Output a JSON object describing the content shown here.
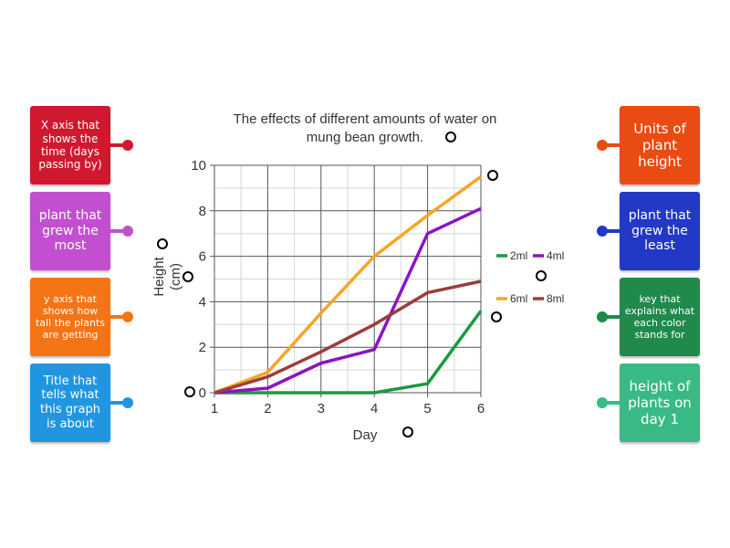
{
  "left_cards": [
    {
      "label": "X axis that shows the time (days passing by)",
      "color": "#d0192e"
    },
    {
      "label": "plant that grew the most",
      "color": "#c24fd0"
    },
    {
      "label": "y axis that shows how tall the plants are getting",
      "color": "#f47516"
    },
    {
      "label": "Title that tells what this graph is about",
      "color": "#2196e0"
    }
  ],
  "right_cards": [
    {
      "label": "Units of plant height",
      "color": "#ea4b12"
    },
    {
      "label": "plant that grew the least",
      "color": "#2238c6"
    },
    {
      "label": "key that explains what each color stands for",
      "color": "#1f8a4c"
    },
    {
      "label": "height of plants on day 1",
      "color": "#39ba85"
    }
  ],
  "chart_data": {
    "type": "line",
    "title": "The effects of different amounts of water on mung bean growth.",
    "title_line1": "The effects of different amounts of water on",
    "title_line2": "mung bean growth.",
    "xlabel": "Day",
    "ylabel": "Height",
    "ylabel_units": "(cm)",
    "x": [
      1,
      2,
      3,
      4,
      5,
      6
    ],
    "xlim": [
      1,
      6
    ],
    "ylim": [
      0,
      10
    ],
    "x_ticks": [
      "1",
      "2",
      "3",
      "4",
      "5",
      "6"
    ],
    "y_ticks": [
      "0",
      "2",
      "4",
      "6",
      "8",
      "10"
    ],
    "grid": true,
    "legend_position": "right",
    "series": [
      {
        "name": "2ml",
        "color": "#1a9a3e",
        "values": [
          0,
          0,
          0,
          0,
          0.4,
          3.6
        ]
      },
      {
        "name": "4ml",
        "color": "#8b13c4",
        "values": [
          0,
          0.2,
          1.3,
          1.9,
          7.0,
          8.1
        ]
      },
      {
        "name": "6ml",
        "color": "#f5a623",
        "values": [
          0,
          0.9,
          3.5,
          6.0,
          7.8,
          9.5
        ]
      },
      {
        "name": "8ml",
        "color": "#9b3d3d",
        "values": [
          0,
          0.7,
          1.8,
          3.0,
          4.4,
          4.9
        ]
      }
    ]
  }
}
